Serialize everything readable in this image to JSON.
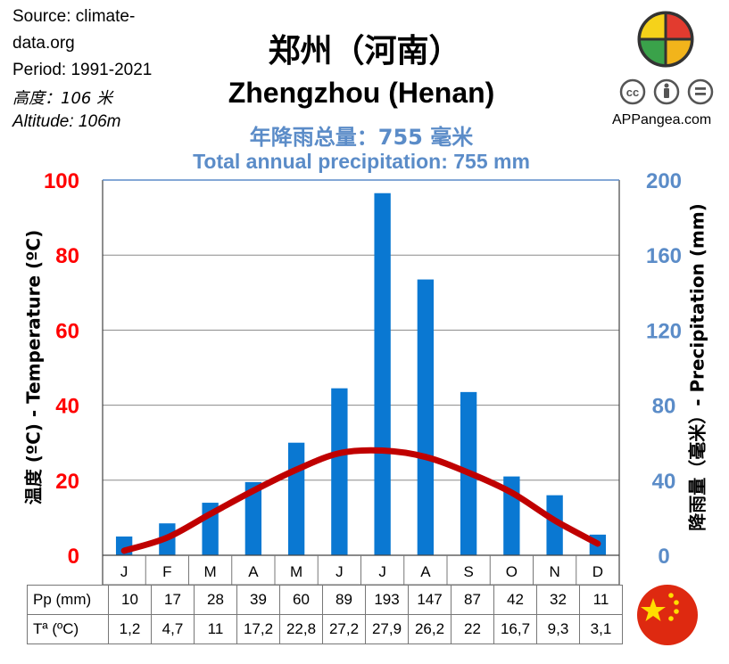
{
  "source_lines": [
    "Source: climate-",
    "data.org",
    "Period: 1991-2021"
  ],
  "altitude_cn": "高度：106 米",
  "altitude_en": "Altitude: 106m",
  "title_cn": "郑州（河南）",
  "title_en": "Zhengzhou (Henan)",
  "subtitle_cn": "年降雨总量：755 毫米",
  "subtitle_en": "Total annual precipitation: 755 mm",
  "brand": "APPangea.com",
  "colors": {
    "bar": "#0a78d2",
    "line": "#c00000",
    "left_axis": "#ff0000",
    "right_axis": "#5b8cc8",
    "subtitle": "#5b8cc8"
  },
  "icons": [
    "puzzle-logo-icon",
    "cc-by-nd-license-icon",
    "china-flag-icon"
  ],
  "chart_data": {
    "type": "bar",
    "categories": [
      "J",
      "F",
      "M",
      "A",
      "M",
      "J",
      "J",
      "A",
      "S",
      "O",
      "N",
      "D"
    ],
    "series": [
      {
        "name": "Pp (mm)",
        "type": "bar",
        "axis": "right",
        "values": [
          10,
          17,
          28,
          39,
          60,
          89,
          193,
          147,
          87,
          42,
          32,
          11
        ]
      },
      {
        "name": "Tª (ºC)",
        "type": "line",
        "axis": "left",
        "values": [
          1.2,
          4.7,
          11,
          17.2,
          22.8,
          27.2,
          27.9,
          26.2,
          22,
          16.7,
          9.3,
          3.1
        ]
      }
    ],
    "ylabel_left": "温度 (ºC) - Temperature  (ºC)",
    "ylabel_right": "降雨量（毫米）- Precipitation  (mm)",
    "ylim_left": [
      0,
      100
    ],
    "ylim_right": [
      0,
      200
    ],
    "yticks_left": [
      "0",
      "20",
      "40",
      "60",
      "80",
      "100"
    ],
    "yticks_right": [
      "0",
      "40",
      "80",
      "120",
      "160",
      "200"
    ],
    "grid": true
  },
  "table": {
    "rows": [
      {
        "label": "Pp (mm)",
        "values": [
          "10",
          "17",
          "28",
          "39",
          "60",
          "89",
          "193",
          "147",
          "87",
          "42",
          "32",
          "11"
        ]
      },
      {
        "label": "Tª (ºC)",
        "values": [
          "1,2",
          "4,7",
          "11",
          "17,2",
          "22,8",
          "27,2",
          "27,9",
          "26,2",
          "22",
          "16,7",
          "9,3",
          "3,1"
        ]
      }
    ]
  }
}
